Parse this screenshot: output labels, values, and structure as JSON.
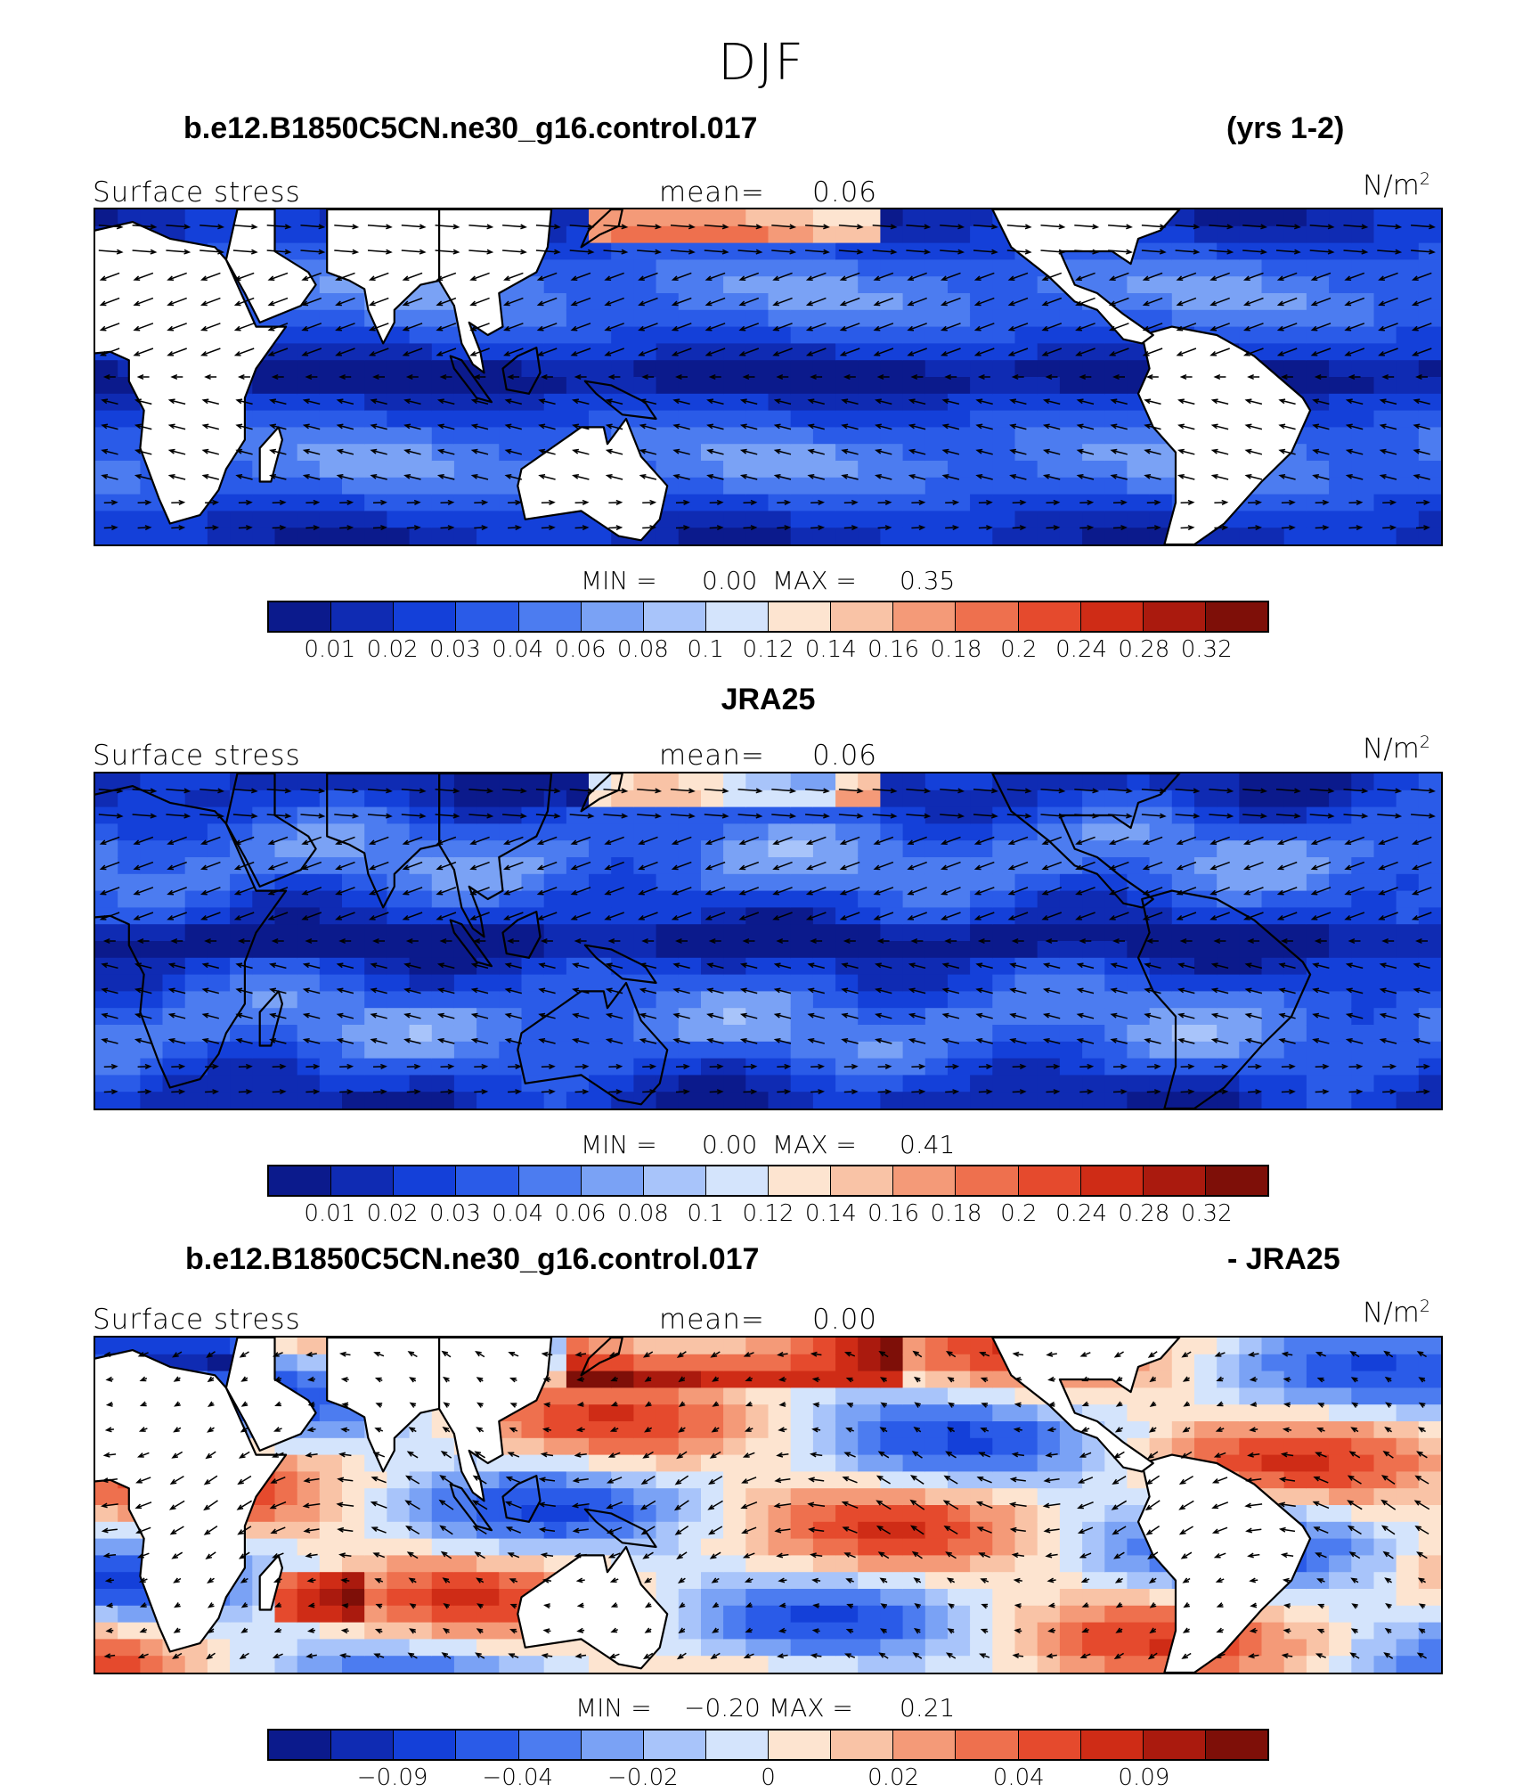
{
  "figure_title": "DJF",
  "colors": {
    "blue": [
      "#0b1a8c",
      "#0f2bb3",
      "#1440d9",
      "#2a5be8",
      "#4c7cf0",
      "#7aa2f5",
      "#a8c4fa",
      "#d4e4fc"
    ],
    "red": [
      "#fde4d0",
      "#f9c3a6",
      "#f49a78",
      "#ee704e",
      "#e54a2d",
      "#cf2c16",
      "#aa1a0e",
      "#7e0f08"
    ],
    "land": "#ffffff",
    "coast": "#000000"
  },
  "panels": [
    {
      "title_left": "b.e12.B1850C5CN.ne30_g16.control.017",
      "title_right": "(yrs 1-2)",
      "left_label": "Surface stress",
      "mean_label": "mean=",
      "mean_value": "0.06",
      "unit": "N/m",
      "unit_exp": "2",
      "min_label": "MIN =",
      "min_value": "0.00",
      "max_label": "MAX =",
      "max_value": "0.35",
      "colorbar_ticks": [
        "0.01",
        "0.02",
        "0.03",
        "0.04",
        "0.06",
        "0.08",
        "0.1",
        "0.12",
        "0.14",
        "0.16",
        "0.18",
        "0.2",
        "0.24",
        "0.28",
        "0.32"
      ],
      "field": "model"
    },
    {
      "title_left": "",
      "title_center": "JRA25",
      "title_right": "",
      "left_label": "Surface stress",
      "mean_label": "mean=",
      "mean_value": "0.06",
      "unit": "N/m",
      "unit_exp": "2",
      "min_label": "MIN =",
      "min_value": "0.00",
      "max_label": "MAX =",
      "max_value": "0.41",
      "colorbar_ticks": [
        "0.01",
        "0.02",
        "0.03",
        "0.04",
        "0.06",
        "0.08",
        "0.1",
        "0.12",
        "0.14",
        "0.16",
        "0.18",
        "0.2",
        "0.24",
        "0.28",
        "0.32"
      ],
      "field": "obs"
    },
    {
      "title_left": "b.e12.B1850C5CN.ne30_g16.control.017",
      "title_right": "- JRA25",
      "left_label": "Surface stress",
      "mean_label": "mean=",
      "mean_value": "0.00",
      "unit": "N/m",
      "unit_exp": "2",
      "min_label": "MIN =",
      "min_value": "−0.20",
      "max_label": "MAX =",
      "max_value": "0.21",
      "colorbar_ticks": [
        "−0.09",
        "−0.04",
        "−0.02",
        "0",
        "0.02",
        "0.04",
        "0.09"
      ],
      "field": "diff"
    }
  ]
}
